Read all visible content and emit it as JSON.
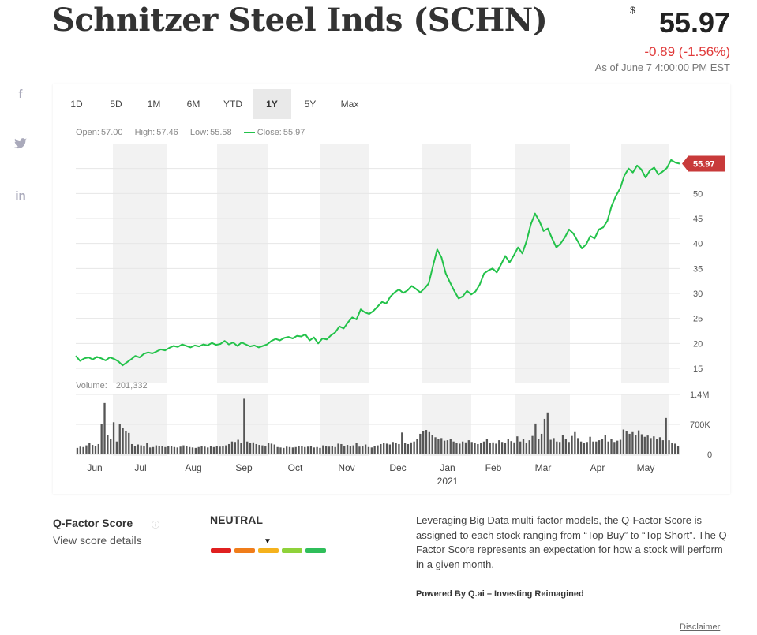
{
  "header": {
    "title": "Schnitzer Steel Inds (SCHN)",
    "currency": "$",
    "price": "55.97",
    "change": "-0.89 (-1.56%)",
    "as_of": "As of June 7 4:00:00 PM EST"
  },
  "share": {
    "facebook": "f",
    "twitter": "🐦",
    "linkedin": "in"
  },
  "ranges": [
    "1D",
    "5D",
    "1M",
    "6M",
    "YTD",
    "1Y",
    "5Y",
    "Max"
  ],
  "active_range": "1Y",
  "ohlc": {
    "open_label": "Open:",
    "open": "57.00",
    "high_label": "High:",
    "high": "57.46",
    "low_label": "Low:",
    "low": "55.58",
    "close_label": "Close:",
    "close": "55.97"
  },
  "volume": {
    "label": "Volume:",
    "value": "201,332"
  },
  "chart_data": {
    "type": "line",
    "title": "",
    "xlabel": "",
    "ylabel": "",
    "price_ylim": [
      12,
      60
    ],
    "price_ticks": [
      15,
      20,
      25,
      30,
      35,
      40,
      45,
      50
    ],
    "last_price_label": "55.97",
    "x_labels": [
      "Jun",
      "Jul",
      "Aug",
      "Sep",
      "Oct",
      "Nov",
      "Dec",
      "Jan",
      "Feb",
      "Mar",
      "Apr",
      "May"
    ],
    "year_label": "2021",
    "grid": true,
    "series": [
      {
        "values": [
          17.5,
          16.5,
          17.0,
          17.2,
          16.8,
          17.3,
          17.0,
          16.6,
          17.2,
          16.9,
          16.4,
          15.6,
          16.2,
          16.8,
          17.5,
          17.2,
          17.9,
          18.2,
          18.0,
          18.4,
          18.8,
          18.6,
          19.1,
          19.5,
          19.3,
          19.8,
          19.5,
          19.2,
          19.6,
          19.4,
          19.8,
          19.6,
          20.1,
          19.7,
          19.9,
          20.5,
          19.8,
          20.2,
          19.5,
          20.2,
          19.8,
          19.4,
          19.6,
          19.2,
          19.5,
          19.8,
          20.5,
          20.9,
          20.6,
          21.1,
          21.3,
          21.0,
          21.5,
          21.4,
          21.8,
          20.6,
          21.2,
          20.0,
          21.0,
          20.8,
          21.6,
          22.2,
          23.4,
          23.0,
          24.2,
          25.2,
          24.8,
          26.8,
          26.2,
          25.9,
          26.5,
          27.4,
          28.3,
          28.0,
          29.4,
          30.2,
          30.8,
          30.1,
          30.6,
          31.5,
          30.9,
          30.2,
          31.0,
          32.0,
          35.5,
          38.8,
          37.2,
          34.0,
          32.2,
          30.5,
          29.0,
          29.4,
          30.5,
          29.8,
          30.4,
          31.8,
          34.0,
          34.6,
          35.0,
          34.2,
          35.8,
          37.5,
          36.2,
          37.6,
          39.2,
          38.0,
          40.5,
          43.8,
          46.0,
          44.5,
          42.5,
          43.0,
          41.0,
          39.2,
          40.0,
          41.2,
          42.8,
          42.0,
          40.5,
          39.0,
          39.8,
          41.5,
          41.0,
          42.8,
          43.2,
          44.5,
          47.5,
          49.5,
          51.0,
          53.6,
          55.0,
          54.2,
          55.6,
          54.8,
          53.2,
          54.6,
          55.2,
          53.8,
          54.4,
          55.1,
          56.7,
          56.2,
          55.97
        ]
      }
    ],
    "volume_ticks": [
      "1.4M",
      "700K",
      "0"
    ],
    "volume_ylim": [
      0,
      1400000
    ],
    "volume_values": [
      150000,
      180000,
      170000,
      210000,
      260000,
      220000,
      190000,
      240000,
      700000,
      1200000,
      450000,
      350000,
      750000,
      300000,
      700000,
      620000,
      550000,
      500000,
      240000,
      200000,
      230000,
      210000,
      190000,
      260000,
      160000,
      170000,
      210000,
      200000,
      190000,
      170000,
      190000,
      200000,
      170000,
      160000,
      180000,
      210000,
      190000,
      170000,
      160000,
      150000,
      170000,
      200000,
      180000,
      160000,
      190000,
      170000,
      200000,
      180000,
      190000,
      210000,
      240000,
      300000,
      290000,
      340000,
      270000,
      1300000,
      300000,
      260000,
      280000,
      240000,
      220000,
      210000,
      190000,
      260000,
      250000,
      230000,
      170000,
      160000,
      150000,
      180000,
      170000,
      160000,
      170000,
      190000,
      200000,
      170000,
      180000,
      200000,
      160000,
      170000,
      150000,
      210000,
      190000,
      180000,
      200000,
      170000,
      250000,
      240000,
      190000,
      220000,
      200000,
      210000,
      260000,
      180000,
      200000,
      230000,
      170000,
      160000,
      190000,
      210000,
      240000,
      270000,
      250000,
      230000,
      290000,
      270000,
      240000,
      510000,
      260000,
      240000,
      280000,
      300000,
      350000,
      480000,
      540000,
      570000,
      520000,
      460000,
      400000,
      350000,
      380000,
      320000,
      330000,
      360000,
      300000,
      270000,
      250000,
      300000,
      280000,
      330000,
      290000,
      260000,
      240000,
      270000,
      300000,
      350000,
      260000,
      280000,
      250000,
      330000,
      290000,
      260000,
      350000,
      310000,
      280000,
      420000,
      300000,
      360000,
      270000,
      330000,
      430000,
      720000,
      360000,
      480000,
      830000,
      980000,
      340000,
      380000,
      300000,
      290000,
      460000,
      350000,
      290000,
      430000,
      520000,
      380000,
      300000,
      260000,
      290000,
      410000,
      300000,
      300000,
      330000,
      350000,
      460000,
      300000,
      360000,
      290000,
      320000,
      340000,
      580000,
      540000,
      480000,
      520000,
      450000,
      560000,
      470000,
      410000,
      440000,
      380000,
      420000,
      360000,
      400000,
      330000,
      850000,
      330000,
      260000,
      250000,
      200000
    ]
  },
  "qfactor": {
    "title": "Q-Factor Score",
    "info_icon": "ⓘ",
    "link": "View score details",
    "rating": "NEUTRAL",
    "marker": "▼",
    "segment_colors": [
      "#e02020",
      "#f07d1a",
      "#f5b21d",
      "#8fd23a",
      "#2fbe5a"
    ],
    "description": "Leveraging Big Data multi-factor models, the Q-Factor Score is assigned to each stock ranging from “Top Buy” to “Top Short”. The Q-Factor Score represents an expectation for how a stock will perform in a given month.",
    "powered_by": "Powered By Q.ai – Investing Reimagined",
    "disclaimer": "Disclaimer"
  },
  "colors": {
    "line": "#23c24a",
    "negative": "#e03a3a",
    "price_tag": "#c83a3a",
    "volume_bar": "#555555"
  }
}
